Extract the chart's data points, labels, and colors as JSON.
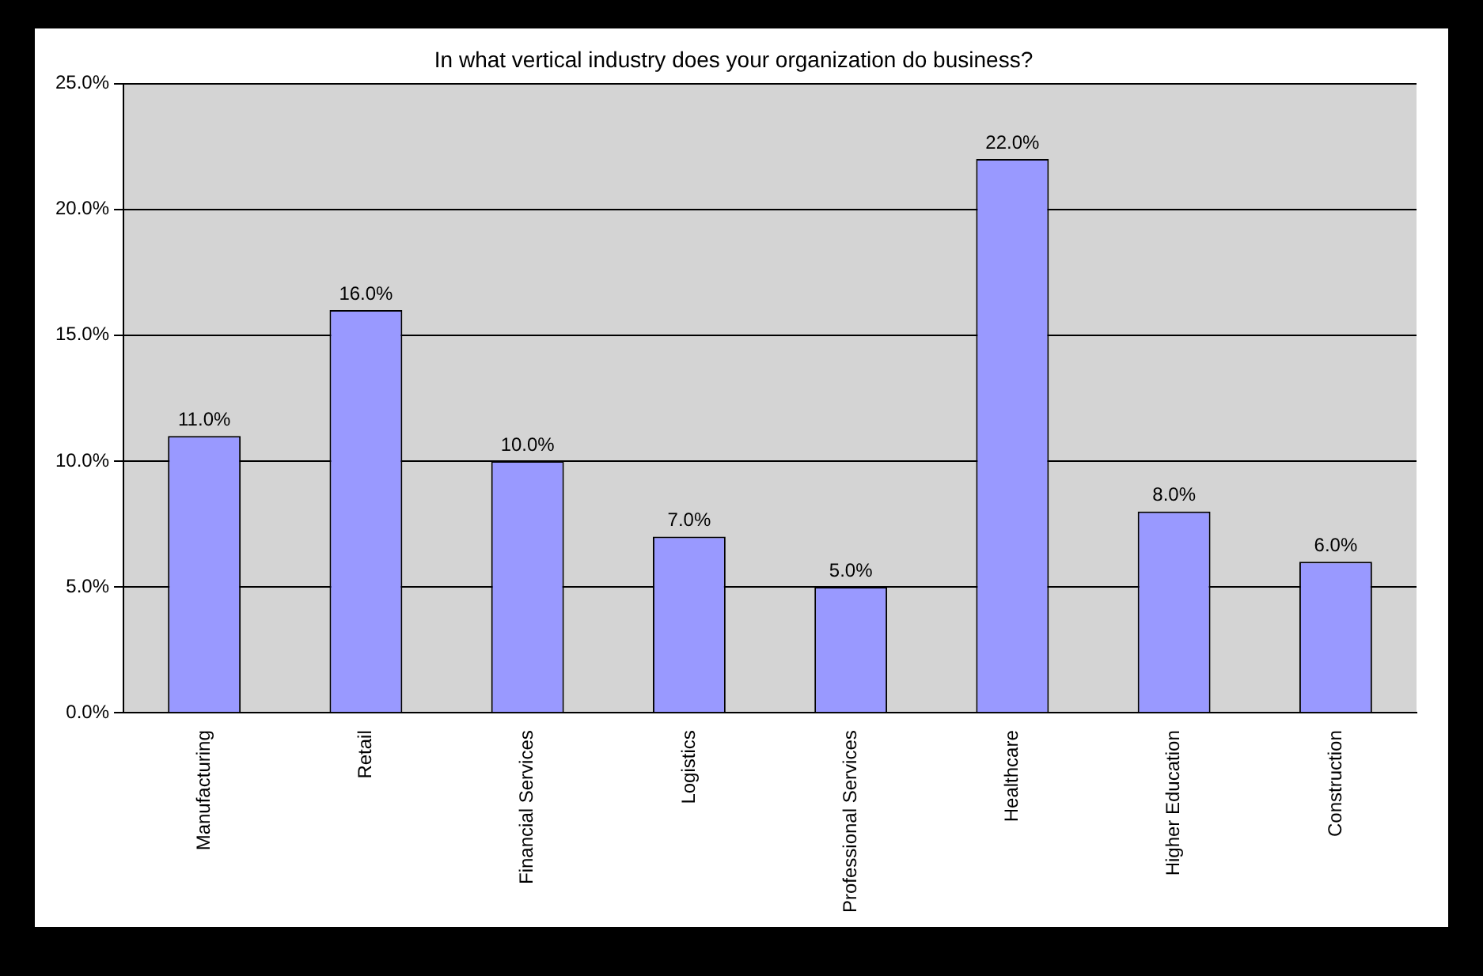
{
  "chart_data": {
    "type": "bar",
    "title": "In what vertical industry does your organization do business?",
    "categories": [
      "Manufacturing",
      "Retail",
      "Financial Services",
      "Logistics",
      "Professional Services",
      "Healthcare",
      "Higher Education",
      "Construction"
    ],
    "values": [
      11,
      16,
      10,
      7,
      5,
      22,
      8,
      6
    ],
    "value_labels": [
      "11.0%",
      "16.0%",
      "10.0%",
      "7.0%",
      "5.0%",
      "22.0%",
      "8.0%",
      "6.0%"
    ],
    "color": "#9999ff",
    "ylim": [
      0,
      25
    ],
    "yticks": [
      {
        "value": 0,
        "label": "0.0%"
      },
      {
        "value": 5,
        "label": "5.0%"
      },
      {
        "value": 10,
        "label": "10.0%"
      },
      {
        "value": 15,
        "label": "15.0%"
      },
      {
        "value": 20,
        "label": "20.0%"
      },
      {
        "value": 25,
        "label": "25.0%"
      }
    ],
    "grid": "y",
    "legend": false
  }
}
